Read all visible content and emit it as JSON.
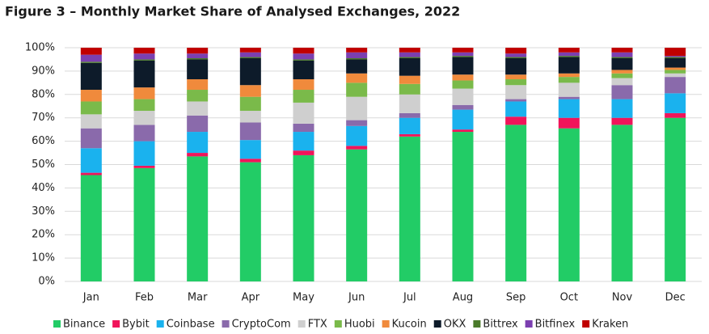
{
  "chart_data": {
    "type": "stacked_bar",
    "title": "Figure 3 – Monthly Market Share of Analysed Exchanges, 2022",
    "categories": [
      "Jan",
      "Feb",
      "Mar",
      "Apr",
      "May",
      "Jun",
      "Jul",
      "Aug",
      "Sep",
      "Oct",
      "Nov",
      "Dec"
    ],
    "ylim": [
      0,
      100
    ],
    "yticks": [
      {
        "value": 0,
        "label": "0%"
      },
      {
        "value": 10,
        "label": "10%"
      },
      {
        "value": 20,
        "label": "20%"
      },
      {
        "value": 30,
        "label": "30%"
      },
      {
        "value": 40,
        "label": "40%"
      },
      {
        "value": 50,
        "label": "50%"
      },
      {
        "value": 60,
        "label": "60%"
      },
      {
        "value": 70,
        "label": "70%"
      },
      {
        "value": 80,
        "label": "80%"
      },
      {
        "value": 90,
        "label": "90%"
      },
      {
        "value": 100,
        "label": "100%"
      }
    ],
    "grid": true,
    "legend": "bottom",
    "series": [
      {
        "name": "Binance",
        "color": "#22cc66",
        "values": [
          45.5,
          48.5,
          53.5,
          51,
          54,
          56.5,
          62,
          64,
          67,
          65.5,
          67,
          70
        ]
      },
      {
        "name": "Bybit",
        "color": "#f0145a",
        "values": [
          1,
          1,
          1.5,
          1.5,
          2,
          1.5,
          1,
          1,
          3.5,
          4.5,
          3,
          2
        ]
      },
      {
        "name": "Coinbase",
        "color": "#1ab2ee",
        "values": [
          10.5,
          10.5,
          9,
          8,
          8,
          8.5,
          7,
          8.5,
          6.5,
          8,
          8,
          8.5
        ]
      },
      {
        "name": "CryptoCom",
        "color": "#8a6aab",
        "values": [
          8.5,
          7,
          7,
          7.5,
          3.5,
          2.5,
          2,
          2,
          1,
          1,
          6,
          7
        ]
      },
      {
        "name": "FTX",
        "color": "#cfcfcf",
        "values": [
          6,
          6,
          6,
          5,
          9,
          10,
          8,
          7,
          6,
          6,
          3,
          1.5
        ]
      },
      {
        "name": "Huobi",
        "color": "#7aba4a",
        "values": [
          5.5,
          5,
          5,
          6,
          5.5,
          6,
          4.5,
          3.5,
          2.5,
          2.5,
          2,
          1.5
        ]
      },
      {
        "name": "Kucoin",
        "color": "#f08a3c",
        "values": [
          5,
          5,
          4.5,
          5,
          4.5,
          4,
          3.5,
          2.5,
          2,
          1.5,
          1.5,
          1
        ]
      },
      {
        "name": "OKX",
        "color": "#0d1b2a",
        "values": [
          11.5,
          11.5,
          8.5,
          11.5,
          8,
          6,
          7.5,
          7.5,
          7,
          7,
          5,
          4
        ]
      },
      {
        "name": "Bittrex",
        "color": "#4a7a2a",
        "values": [
          0.5,
          0.5,
          0.5,
          0.5,
          0.5,
          0.5,
          0.5,
          0.5,
          0.5,
          0.5,
          0.5,
          0.5
        ]
      },
      {
        "name": "Bitfinex",
        "color": "#7b3fb0",
        "values": [
          3,
          2.5,
          2,
          2,
          2.5,
          2.5,
          2,
          1.5,
          1.5,
          1.5,
          2,
          0.5
        ]
      },
      {
        "name": "Kraken",
        "color": "#c00000",
        "values": [
          3,
          2.5,
          2.5,
          2,
          2.5,
          2,
          2,
          2,
          2.5,
          2,
          2,
          3.5
        ]
      }
    ]
  }
}
